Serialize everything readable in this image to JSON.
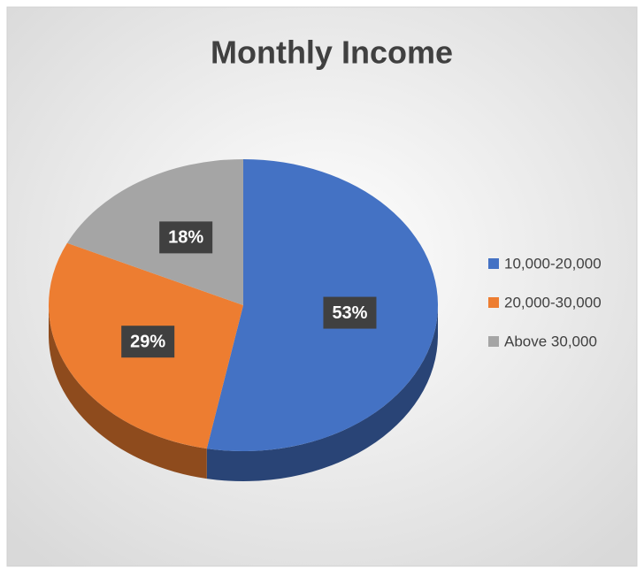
{
  "chart_data": {
    "type": "pie",
    "title": "Monthly Income",
    "categories": [
      "10,000-20,000",
      "20,000-30,000",
      "Above 30,000"
    ],
    "values": [
      53,
      29,
      18
    ],
    "value_labels": [
      "53%",
      "29%",
      "18%"
    ],
    "colors": [
      "#4472c4",
      "#ed7d31",
      "#a5a5a5"
    ],
    "legend": "right"
  }
}
